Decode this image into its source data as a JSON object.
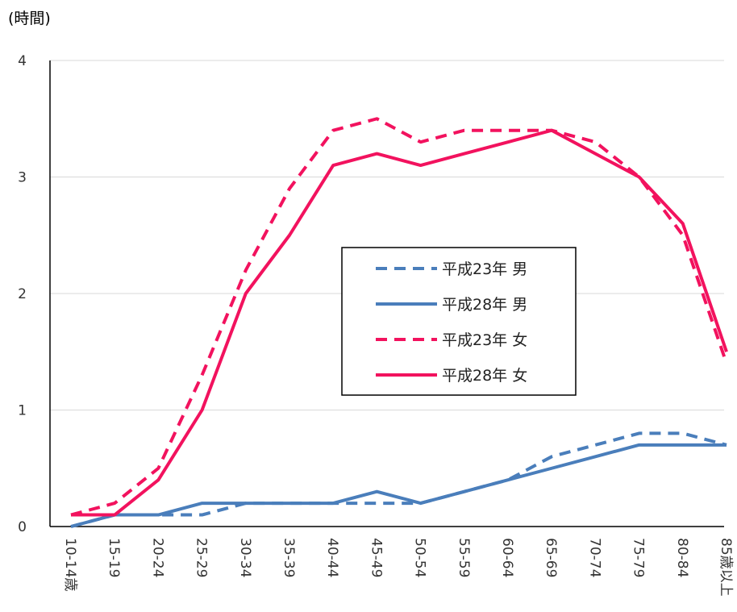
{
  "chart_data": {
    "type": "line",
    "ylabel": "(時間)",
    "ylim": [
      0,
      4
    ],
    "yticks": [
      0,
      1,
      2,
      3,
      4
    ],
    "grid": true,
    "legend_position": "center-right",
    "categories": [
      "10-14歳",
      "15-19",
      "20-24",
      "25-29",
      "30-34",
      "35-39",
      "40-44",
      "45-49",
      "50-54",
      "55-59",
      "60-64",
      "65-69",
      "70-74",
      "75-79",
      "80-84",
      "85歳以上"
    ],
    "series": [
      {
        "name": "平成23年 男",
        "color": "#4A7EBB",
        "dash": "dashed",
        "values": [
          0.0,
          0.1,
          0.1,
          0.1,
          0.2,
          0.2,
          0.2,
          0.2,
          0.2,
          0.3,
          0.4,
          0.6,
          0.7,
          0.8,
          0.8,
          0.7
        ]
      },
      {
        "name": "平成28年 男",
        "color": "#4A7EBB",
        "dash": "solid",
        "values": [
          0.0,
          0.1,
          0.1,
          0.2,
          0.2,
          0.2,
          0.2,
          0.3,
          0.2,
          0.3,
          0.4,
          0.5,
          0.6,
          0.7,
          0.7,
          0.7
        ]
      },
      {
        "name": "平成23年 女",
        "color": "#F2125E",
        "dash": "dashed",
        "values": [
          0.1,
          0.2,
          0.5,
          1.3,
          2.2,
          2.9,
          3.4,
          3.5,
          3.3,
          3.4,
          3.4,
          3.4,
          3.3,
          3.0,
          2.5,
          1.4
        ]
      },
      {
        "name": "平成28年 女",
        "color": "#F2125E",
        "dash": "solid",
        "values": [
          0.1,
          0.1,
          0.4,
          1.0,
          2.0,
          2.5,
          3.1,
          3.2,
          3.1,
          3.2,
          3.3,
          3.4,
          3.2,
          3.0,
          2.6,
          1.5
        ]
      }
    ]
  }
}
